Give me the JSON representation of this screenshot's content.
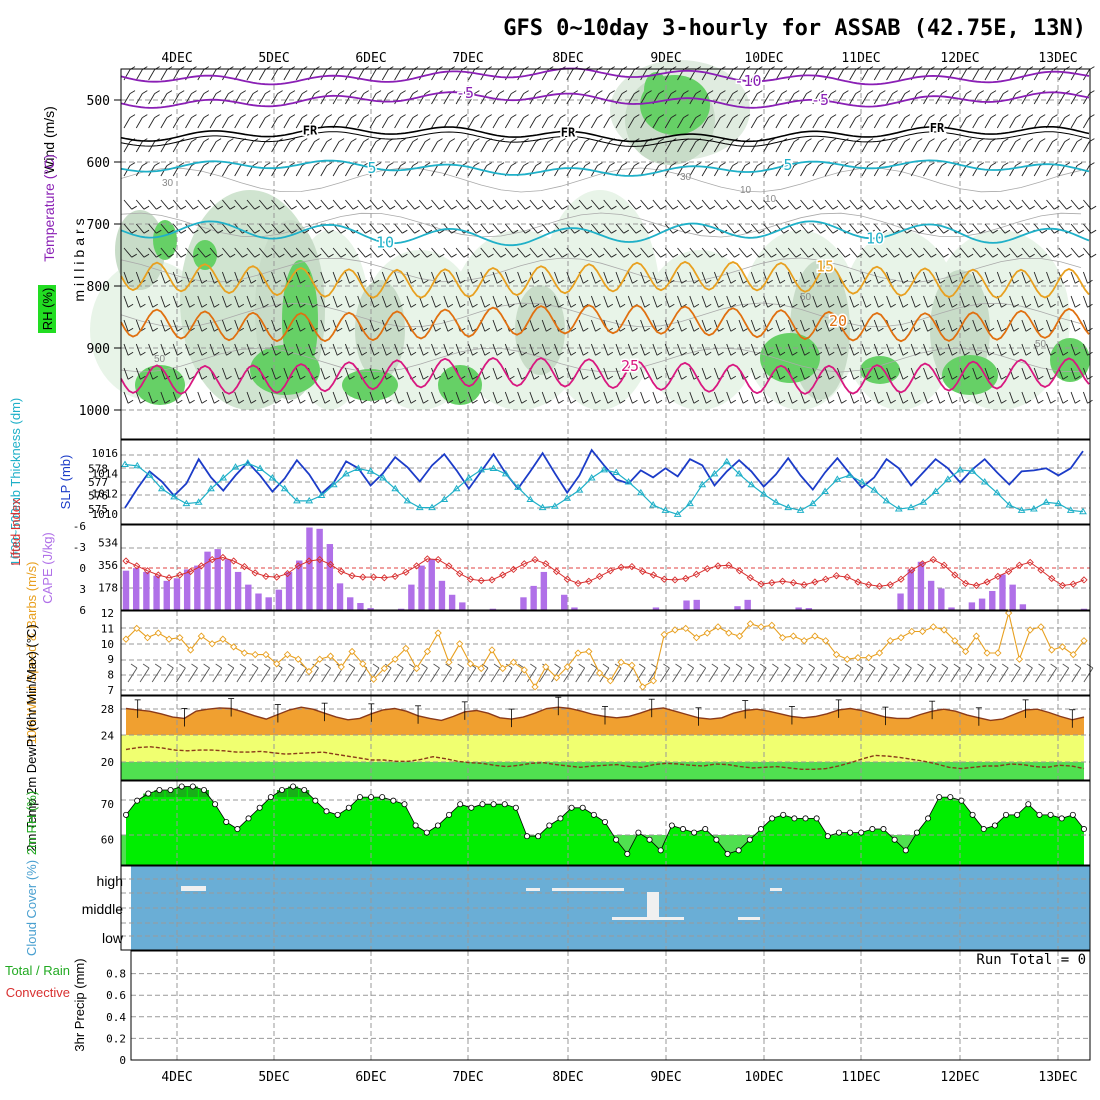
{
  "title": "GFS 0~10day 3-hourly for ASSAB (42.75E, 13N)",
  "dates": [
    "4DEC",
    "5DEC",
    "6DEC",
    "7DEC",
    "8DEC",
    "9DEC",
    "10DEC",
    "11DEC",
    "12DEC",
    "13DEC"
  ],
  "colors": {
    "purple": "#8a1fb5",
    "cyan": "#1fb0c8",
    "blue": "#1c3cc8",
    "orange": "#e8a020",
    "darkorange": "#e07010",
    "magenta": "#d81880",
    "green": "#22dd22",
    "cloudblue": "#6aaed6"
  },
  "chart_data": [
    {
      "type": "contour",
      "panel": "upper-air",
      "ylabel": "millibars",
      "yticks": [
        500,
        600,
        700,
        800,
        900,
        1000
      ],
      "ylim": [
        450,
        1000
      ],
      "side_labels": {
        "wind": "Wind (m/s)",
        "temperature": "Temperature (°C)",
        "rh": "RH (%)",
        "pressure": "millibars"
      },
      "isotherms": [
        {
          "label": "-10",
          "level": -10,
          "pressure": 462
        },
        {
          "label": "-5",
          "level": -5,
          "pressure": 500
        },
        {
          "label": "FR",
          "level": 0,
          "pressure": 555
        },
        {
          "label": "5",
          "level": 5,
          "pressure": 610
        },
        {
          "label": "10",
          "level": 10,
          "pressure": 715
        },
        {
          "label": "15",
          "level": 15,
          "pressure": 790
        },
        {
          "label": "20",
          "level": 20,
          "pressure": 860
        },
        {
          "label": "25",
          "level": 25,
          "pressure": 945
        }
      ],
      "rh_contour_labels": [
        "30",
        "50",
        "30",
        "10",
        "10",
        "50",
        "50"
      ]
    },
    {
      "type": "line",
      "panel": "slp-thickness",
      "ylabel_left": "1000~500mb Thickness (dm)",
      "ylabel_right": "SLP (mb)",
      "yticks_left": [
        575,
        576,
        577,
        578
      ],
      "yticks_right": [
        1010,
        1012,
        1014,
        1016
      ],
      "series": [
        {
          "name": "SLP (mb)",
          "values": [
            1010.6,
            1012.5,
            1014.2,
            1013.2,
            1011.8,
            1013.0,
            1015.4,
            1013.6,
            1012.3,
            1013.8,
            1015.1,
            1013.8,
            1012.2,
            1013.5,
            1015.3,
            1013.9,
            1012.0,
            1013.1,
            1015.2,
            1014.5,
            1012.8,
            1014.0,
            1015.6,
            1014.6,
            1013.2,
            1014.8,
            1015.9,
            1014.3,
            1012.5,
            1014.2,
            1015.9,
            1014.0,
            1012.5,
            1014.2,
            1016.0,
            1014.0,
            1012.1,
            1013.8,
            1016.3,
            1014.8,
            1013.4,
            1013.0,
            1014.3,
            1013.6,
            1014.5,
            1013.7,
            1015.4,
            1014.8,
            1012.8,
            1014.2,
            1015.3,
            1014.2,
            1012.7,
            1013.9,
            1015.5,
            1013.8,
            1012.4,
            1014.1,
            1015.5,
            1014.0,
            1012.6,
            1013.6,
            1015.4,
            1014.5,
            1012.8,
            1014.1,
            1015.4,
            1014.5,
            1013.1,
            1014.4,
            1015.4,
            1014.1,
            1012.9,
            1014.2,
            1014.3,
            1014.5,
            1013.8,
            1014.5,
            1016.2
          ]
        },
        {
          "name": "1000~500mb Thickness (dm)",
          "values": [
            578.3,
            578.2,
            577.5,
            576.5,
            575.9,
            575.4,
            575.5,
            576.5,
            577.3,
            578.1,
            578.4,
            578.0,
            577.3,
            576.5,
            575.6,
            575.6,
            576.0,
            576.8,
            577.6,
            578.0,
            577.8,
            577.3,
            576.5,
            575.6,
            575.1,
            575.1,
            575.7,
            576.5,
            577.3,
            577.9,
            578.0,
            577.6,
            576.6,
            575.7,
            575.1,
            575.2,
            575.8,
            576.4,
            577.3,
            577.9,
            577.7,
            577.0,
            576.2,
            575.3,
            574.9,
            574.6,
            575.4,
            576.8,
            577.6,
            578.5,
            577.6,
            576.8,
            576.1,
            575.5,
            575.1,
            574.9,
            575.4,
            576.3,
            577.2,
            577.5,
            577.0,
            576.4,
            575.6,
            575.0,
            575.1,
            575.5,
            576.3,
            577.2,
            577.9,
            577.8,
            577.0,
            576.2,
            575.3,
            574.9,
            575.0,
            575.5,
            575.4,
            574.9,
            574.8
          ]
        }
      ]
    },
    {
      "type": "bar",
      "panel": "cape-li",
      "ylabel_left": "Lifted Index",
      "ylabel_right": "CAPE (J/kg)",
      "yticks_left": [
        -6,
        -3,
        0,
        3,
        6
      ],
      "yticks_right": [
        178,
        356,
        534
      ],
      "series": [
        {
          "name": "CAPE (J/kg)",
          "values": [
            310,
            330,
            300,
            270,
            230,
            250,
            320,
            350,
            460,
            480,
            400,
            300,
            200,
            130,
            100,
            160,
            300,
            390,
            650,
            640,
            520,
            210,
            100,
            55,
            15,
            0,
            0,
            10,
            200,
            350,
            400,
            230,
            120,
            60,
            0,
            0,
            10,
            0,
            0,
            100,
            190,
            300,
            0,
            120,
            20,
            0,
            0,
            0,
            0,
            0,
            0,
            0,
            20,
            0,
            0,
            75,
            80,
            0,
            0,
            0,
            30,
            80,
            0,
            0,
            0,
            0,
            20,
            15,
            0,
            0,
            0,
            0,
            0,
            0,
            0,
            0,
            130,
            320,
            380,
            230,
            170,
            20,
            0,
            60,
            90,
            150,
            280,
            200,
            45,
            0,
            0,
            0,
            0,
            0,
            10
          ]
        },
        {
          "name": "Lifted Index",
          "values": [
            -1.0,
            -0.3,
            0.4,
            1.0,
            1.4,
            1.0,
            0.5,
            -0.3,
            -1.2,
            -1.5,
            -1.0,
            -0.2,
            0.7,
            1.2,
            1.3,
            0.8,
            -0.3,
            -1.0,
            -1.2,
            -0.5,
            0.5,
            1.1,
            1.3,
            1.3,
            1.4,
            1.2,
            0.6,
            -0.3,
            -1.3,
            -1.2,
            -0.3,
            0.8,
            1.6,
            1.8,
            1.7,
            1.0,
            0.2,
            -0.6,
            -1.2,
            -0.6,
            0.5,
            1.6,
            2.2,
            1.9,
            1.2,
            0.4,
            -0.1,
            -0.2,
            0.5,
            1.0,
            1.6,
            1.7,
            1.5,
            0.9,
            0.1,
            -0.3,
            -0.4,
            0.4,
            1.4,
            2.3,
            2.1,
            1.9,
            2.1,
            2.4,
            2.0,
            1.6,
            1.1,
            1.3,
            2.0,
            2.4,
            2.6,
            2.4,
            1.6,
            0.3,
            -0.6,
            -1.2,
            -0.4,
            1.0,
            2.2,
            2.5,
            2.0,
            1.2,
            0.5,
            -0.4,
            -0.8,
            0.3,
            1.5,
            2.5,
            2.3,
            1.7
          ]
        }
      ]
    },
    {
      "type": "line",
      "panel": "wind10m",
      "ylabel": "10m Wind Speed & Barbs (m/s)",
      "yticks": [
        7,
        8,
        9,
        10,
        11,
        12
      ],
      "values": [
        10.3,
        11.0,
        10.4,
        10.7,
        10.3,
        10.4,
        9.6,
        10.5,
        10.0,
        10.3,
        9.8,
        9.4,
        9.3,
        9.3,
        8.7,
        9.3,
        9.0,
        8.2,
        9.0,
        9.2,
        8.5,
        9.5,
        8.7,
        7.7,
        8.4,
        9.0,
        9.7,
        8.4,
        9.5,
        10.7,
        8.8,
        10.0,
        8.7,
        8.4,
        9.6,
        8.4,
        8.8,
        8.3,
        7.2,
        8.5,
        7.8,
        8.5,
        9.4,
        9.5,
        8.1,
        7.6,
        8.8,
        8.6,
        7.2,
        7.6,
        10.6,
        10.9,
        11.0,
        10.4,
        10.7,
        11.1,
        10.7,
        10.5,
        11.3,
        11.1,
        11.2,
        10.4,
        10.5,
        10.2,
        10.5,
        10.2,
        9.3,
        9.0,
        9.1,
        9.1,
        9.4,
        10.2,
        10.4,
        10.8,
        10.8,
        11.1,
        10.9,
        10.2,
        9.5,
        10.5,
        9.4,
        9.4,
        12.0,
        9.0,
        10.9,
        11.1,
        9.6,
        9.8,
        9.3,
        10.2
      ]
    },
    {
      "type": "area",
      "panel": "temperature",
      "ylabel": "2m Temp 2m DewPt (6hr Min/Max) (°C)",
      "yticks": [
        20,
        24,
        28
      ],
      "series": [
        {
          "name": "2m Temp",
          "values": [
            28.1,
            27.9,
            27.7,
            27.3,
            26.8,
            26.6,
            27.7,
            28.0,
            28.2,
            28.1,
            27.6,
            27.0,
            26.5,
            27.2,
            27.9,
            28.3,
            28.0,
            27.4,
            26.8,
            26.4,
            26.6,
            27.3,
            27.9,
            28.1,
            27.7,
            27.0,
            26.6,
            26.3,
            26.9,
            27.6,
            27.8,
            27.4,
            26.7,
            26.5,
            26.8,
            27.4,
            28.1,
            28.3,
            28.1,
            27.7,
            27.2,
            26.9,
            26.7,
            26.9,
            27.4,
            28.0,
            28.2,
            27.7,
            27.2,
            26.7,
            26.5,
            26.7,
            27.4,
            27.8,
            28.0,
            27.7,
            27.3,
            26.9,
            26.7,
            26.9,
            27.3,
            27.9,
            28.1,
            27.8,
            27.3,
            26.8,
            26.6,
            26.6,
            27.2,
            27.7,
            28.0,
            27.7,
            27.1,
            26.7,
            26.3,
            26.5,
            27.2,
            27.9,
            28.0,
            27.5,
            26.9,
            26.4,
            26.8
          ]
        },
        {
          "name": "2m DewPt",
          "values": [
            21.9,
            22.2,
            22.3,
            22.1,
            21.8,
            21.7,
            21.8,
            21.8,
            21.7,
            21.5,
            21.5,
            21.6,
            21.4,
            21.2,
            21.3,
            21.4,
            21.5,
            21.2,
            20.9,
            20.6,
            20.3,
            20.3,
            20.1,
            20.1,
            20.4,
            20.8,
            20.5,
            20.1,
            19.9,
            19.8,
            19.5,
            19.3,
            19.5,
            19.8,
            19.9,
            19.6,
            19.4,
            19.2,
            19.4,
            19.5,
            19.6,
            19.3,
            19.2,
            19.6,
            19.8,
            19.7,
            19.5,
            19.4,
            19.7,
            19.6,
            19.3,
            19.1,
            19.2,
            19.3,
            19.1,
            18.9,
            18.9,
            19.0,
            19.4,
            19.9,
            20.5,
            21.0,
            20.9,
            20.7,
            20.4,
            20.1,
            19.7,
            19.2,
            19.0,
            19.2,
            19.4,
            19.4,
            19.7,
            19.6,
            19.3,
            19.2,
            19.5,
            19.4,
            19.0
          ]
        }
      ]
    },
    {
      "type": "area",
      "panel": "rh2m",
      "ylabel": "2m RH (%)",
      "yticks": [
        60,
        70
      ],
      "values": [
        67,
        71,
        73,
        74,
        74,
        75,
        75,
        74,
        70,
        65,
        63,
        66,
        69,
        72,
        74,
        75,
        74,
        71,
        68,
        67,
        69,
        72,
        72,
        72,
        71,
        70,
        64,
        62,
        64,
        67,
        70,
        69,
        70,
        70,
        70,
        69,
        61,
        61,
        64,
        66,
        69,
        69,
        67,
        65,
        60,
        56,
        62,
        60,
        57,
        64,
        63,
        62,
        63,
        60,
        56,
        57,
        60,
        63,
        66,
        67,
        66,
        66,
        66,
        61,
        62,
        62,
        62,
        63,
        63,
        60,
        57,
        62,
        66,
        72,
        72,
        71,
        67,
        63,
        64,
        67,
        67,
        70,
        67,
        67,
        66,
        67,
        63
      ]
    },
    {
      "type": "heatmap",
      "panel": "cloud",
      "ylabel": "Cloud Cover (%)",
      "levels": [
        "high",
        "middle",
        "low"
      ]
    },
    {
      "type": "bar",
      "panel": "precip",
      "ylabel_left": "Total / Rain",
      "ylabel_mid": "Convective",
      "ylabel_right": "3hr Precip (mm)",
      "yticks": [
        "0",
        "0.2",
        "0.4",
        "0.6",
        "0.8"
      ],
      "ylim": [
        0,
        0.9
      ],
      "annotation": "Run Total = 0",
      "values": []
    }
  ]
}
